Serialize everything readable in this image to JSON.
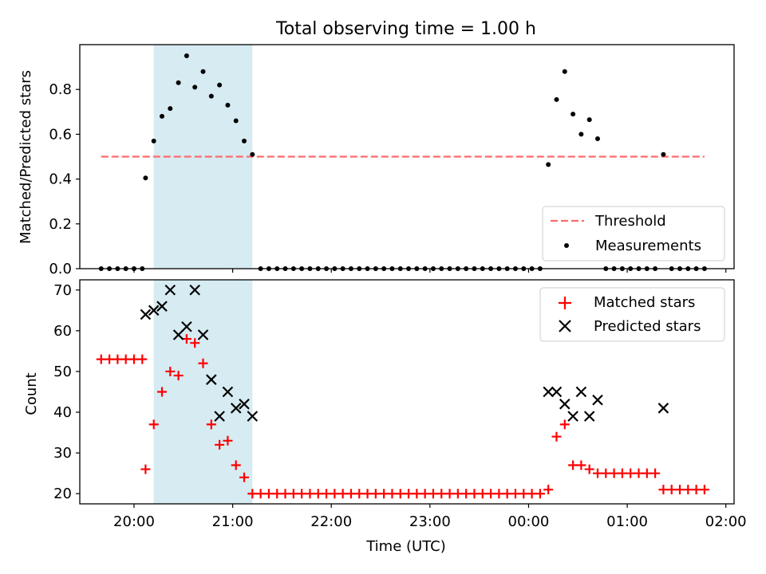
{
  "chart_data": [
    {
      "type": "scatter",
      "title": "Total observing time = 1.00 h",
      "ylabel": "Matched/Predicted stars",
      "xlabel": "",
      "xlim": [
        "19:27",
        "02:05"
      ],
      "ylim": [
        0,
        1.0
      ],
      "yticks": [
        "0.0",
        "0.2",
        "0.4",
        "0.6",
        "0.8"
      ],
      "xticks": [
        "20:00",
        "21:00",
        "22:00",
        "23:00",
        "00:00",
        "01:00",
        "02:00"
      ],
      "grid": false,
      "legend_position": "lower right",
      "shaded_region": {
        "start": "20:12",
        "end": "21:12",
        "color": "#add8e6"
      },
      "threshold": {
        "name": "Threshold",
        "value": 0.5,
        "start": "19:40",
        "end": "01:47",
        "color": "#ff6b6b"
      },
      "series": [
        {
          "name": "Measurements",
          "color": "#000000",
          "points": [
            [
              "19:40",
              0.0
            ],
            [
              "19:45",
              0.0
            ],
            [
              "19:50",
              0.0
            ],
            [
              "19:55",
              0.0
            ],
            [
              "20:00",
              0.0
            ],
            [
              "20:05",
              0.0
            ],
            [
              "20:07",
              0.405
            ],
            [
              "20:12",
              0.57
            ],
            [
              "20:17",
              0.68
            ],
            [
              "20:22",
              0.715
            ],
            [
              "20:27",
              0.83
            ],
            [
              "20:32",
              0.95
            ],
            [
              "20:37",
              0.81
            ],
            [
              "20:42",
              0.88
            ],
            [
              "20:47",
              0.77
            ],
            [
              "20:52",
              0.82
            ],
            [
              "20:57",
              0.73
            ],
            [
              "21:02",
              0.66
            ],
            [
              "21:07",
              0.57
            ],
            [
              "21:12",
              0.51
            ],
            [
              "21:17",
              0.0
            ],
            [
              "21:22",
              0.0
            ],
            [
              "21:27",
              0.0
            ],
            [
              "21:32",
              0.0
            ],
            [
              "21:37",
              0.0
            ],
            [
              "21:42",
              0.0
            ],
            [
              "21:47",
              0.0
            ],
            [
              "21:52",
              0.0
            ],
            [
              "21:57",
              0.0
            ],
            [
              "22:02",
              0.0
            ],
            [
              "22:07",
              0.0
            ],
            [
              "22:12",
              0.0
            ],
            [
              "22:17",
              0.0
            ],
            [
              "22:22",
              0.0
            ],
            [
              "22:27",
              0.0
            ],
            [
              "22:32",
              0.0
            ],
            [
              "22:37",
              0.0
            ],
            [
              "22:42",
              0.0
            ],
            [
              "22:47",
              0.0
            ],
            [
              "22:52",
              0.0
            ],
            [
              "22:57",
              0.0
            ],
            [
              "23:02",
              0.0
            ],
            [
              "23:07",
              0.0
            ],
            [
              "23:12",
              0.0
            ],
            [
              "23:17",
              0.0
            ],
            [
              "23:22",
              0.0
            ],
            [
              "23:27",
              0.0
            ],
            [
              "23:32",
              0.0
            ],
            [
              "23:37",
              0.0
            ],
            [
              "23:42",
              0.0
            ],
            [
              "23:47",
              0.0
            ],
            [
              "23:52",
              0.0
            ],
            [
              "23:57",
              0.0
            ],
            [
              "00:02",
              0.0
            ],
            [
              "00:07",
              0.0
            ],
            [
              "00:12",
              0.465
            ],
            [
              "00:17",
              0.755
            ],
            [
              "00:22",
              0.88
            ],
            [
              "00:27",
              0.69
            ],
            [
              "00:32",
              0.6
            ],
            [
              "00:37",
              0.665
            ],
            [
              "00:42",
              0.58
            ],
            [
              "00:47",
              0.0
            ],
            [
              "00:52",
              0.0
            ],
            [
              "00:57",
              0.0
            ],
            [
              "01:02",
              0.0
            ],
            [
              "01:07",
              0.0
            ],
            [
              "01:12",
              0.0
            ],
            [
              "01:17",
              0.0
            ],
            [
              "01:22",
              0.51
            ],
            [
              "01:27",
              0.0
            ],
            [
              "01:32",
              0.0
            ],
            [
              "01:37",
              0.0
            ],
            [
              "01:42",
              0.0
            ],
            [
              "01:47",
              0.0
            ]
          ]
        }
      ]
    },
    {
      "type": "scatter",
      "title": "",
      "ylabel": "Count",
      "xlabel": "Time (UTC)",
      "xlim": [
        "19:27",
        "02:05"
      ],
      "ylim": [
        17.5,
        72.5
      ],
      "yticks": [
        "20",
        "30",
        "40",
        "50",
        "60",
        "70"
      ],
      "xticks": [
        "20:00",
        "21:00",
        "22:00",
        "23:00",
        "00:00",
        "01:00",
        "02:00"
      ],
      "grid": false,
      "legend_position": "upper right",
      "shaded_region": {
        "start": "20:12",
        "end": "21:12",
        "color": "#add8e6"
      },
      "series": [
        {
          "name": "Matched stars",
          "marker": "+",
          "color": "#ff0000",
          "points": [
            [
              "19:40",
              53
            ],
            [
              "19:45",
              53
            ],
            [
              "19:50",
              53
            ],
            [
              "19:55",
              53
            ],
            [
              "20:00",
              53
            ],
            [
              "20:05",
              53
            ],
            [
              "20:07",
              26
            ],
            [
              "20:12",
              37
            ],
            [
              "20:17",
              45
            ],
            [
              "20:22",
              50
            ],
            [
              "20:27",
              49
            ],
            [
              "20:32",
              58
            ],
            [
              "20:37",
              57
            ],
            [
              "20:42",
              52
            ],
            [
              "20:47",
              37
            ],
            [
              "20:52",
              32
            ],
            [
              "20:57",
              33
            ],
            [
              "21:02",
              27
            ],
            [
              "21:07",
              24
            ],
            [
              "21:12",
              20
            ],
            [
              "21:17",
              20
            ],
            [
              "21:22",
              20
            ],
            [
              "21:27",
              20
            ],
            [
              "21:32",
              20
            ],
            [
              "21:37",
              20
            ],
            [
              "21:42",
              20
            ],
            [
              "21:47",
              20
            ],
            [
              "21:52",
              20
            ],
            [
              "21:57",
              20
            ],
            [
              "22:02",
              20
            ],
            [
              "22:07",
              20
            ],
            [
              "22:12",
              20
            ],
            [
              "22:17",
              20
            ],
            [
              "22:22",
              20
            ],
            [
              "22:27",
              20
            ],
            [
              "22:32",
              20
            ],
            [
              "22:37",
              20
            ],
            [
              "22:42",
              20
            ],
            [
              "22:47",
              20
            ],
            [
              "22:52",
              20
            ],
            [
              "22:57",
              20
            ],
            [
              "23:02",
              20
            ],
            [
              "23:07",
              20
            ],
            [
              "23:12",
              20
            ],
            [
              "23:17",
              20
            ],
            [
              "23:22",
              20
            ],
            [
              "23:27",
              20
            ],
            [
              "23:32",
              20
            ],
            [
              "23:37",
              20
            ],
            [
              "23:42",
              20
            ],
            [
              "23:47",
              20
            ],
            [
              "23:52",
              20
            ],
            [
              "23:57",
              20
            ],
            [
              "00:02",
              20
            ],
            [
              "00:07",
              20
            ],
            [
              "00:12",
              21
            ],
            [
              "00:17",
              34
            ],
            [
              "00:22",
              37
            ],
            [
              "00:27",
              27
            ],
            [
              "00:32",
              27
            ],
            [
              "00:37",
              26
            ],
            [
              "00:42",
              25
            ],
            [
              "00:47",
              25
            ],
            [
              "00:52",
              25
            ],
            [
              "00:57",
              25
            ],
            [
              "01:02",
              25
            ],
            [
              "01:07",
              25
            ],
            [
              "01:12",
              25
            ],
            [
              "01:17",
              25
            ],
            [
              "01:22",
              21
            ],
            [
              "01:27",
              21
            ],
            [
              "01:32",
              21
            ],
            [
              "01:37",
              21
            ],
            [
              "01:42",
              21
            ],
            [
              "01:47",
              21
            ]
          ]
        },
        {
          "name": "Predicted stars",
          "marker": "x",
          "color": "#000000",
          "points": [
            [
              "20:07",
              64
            ],
            [
              "20:12",
              65
            ],
            [
              "20:17",
              66
            ],
            [
              "20:22",
              70
            ],
            [
              "20:27",
              59
            ],
            [
              "20:32",
              61
            ],
            [
              "20:37",
              70
            ],
            [
              "20:42",
              59
            ],
            [
              "20:47",
              48
            ],
            [
              "20:52",
              39
            ],
            [
              "20:57",
              45
            ],
            [
              "21:02",
              41
            ],
            [
              "21:07",
              42
            ],
            [
              "21:12",
              39
            ],
            [
              "00:12",
              45
            ],
            [
              "00:17",
              45
            ],
            [
              "00:22",
              42
            ],
            [
              "00:27",
              39
            ],
            [
              "00:32",
              45
            ],
            [
              "00:37",
              39
            ],
            [
              "00:42",
              43
            ],
            [
              "01:22",
              41
            ]
          ]
        }
      ]
    }
  ]
}
